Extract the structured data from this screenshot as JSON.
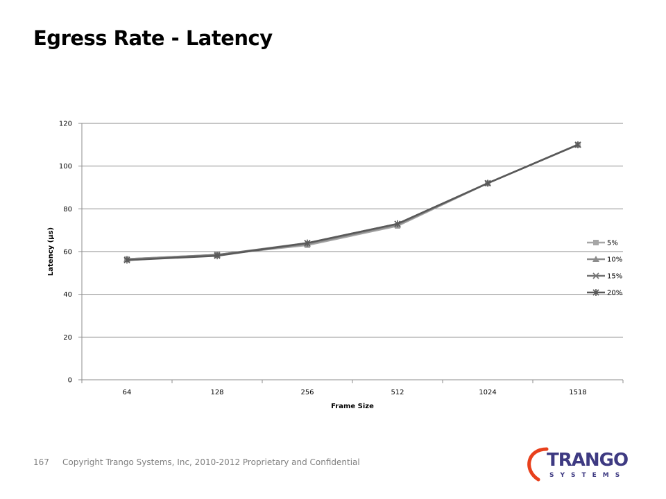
{
  "slide": {
    "title": "Egress Rate - Latency",
    "page_number": "167",
    "copyright": "Copyright Trango Systems, Inc, 2010-2012  Proprietary and Confidential"
  },
  "logo": {
    "name": "TRANGO",
    "sub": "SYSTEMS",
    "colors": {
      "text": "#3e3a82",
      "arc": "#e8401c"
    }
  },
  "chart_data": {
    "type": "line",
    "title": "",
    "xlabel": "Frame Size",
    "ylabel": "Latency (µs)",
    "categories": [
      "64",
      "128",
      "256",
      "512",
      "1024",
      "1518"
    ],
    "ylim": [
      0,
      120
    ],
    "yticks": [
      0,
      20,
      40,
      60,
      80,
      100,
      120
    ],
    "grid": true,
    "legend_position": "right",
    "series": [
      {
        "name": "5%",
        "values": [
          56.5,
          58.5,
          63,
          72,
          92,
          110
        ],
        "color": "#a6a6a6",
        "marker": "square"
      },
      {
        "name": "10%",
        "values": [
          56.5,
          58.5,
          63.5,
          72.5,
          92,
          110
        ],
        "color": "#8c8c8c",
        "marker": "triangle"
      },
      {
        "name": "15%",
        "values": [
          56,
          58.5,
          64,
          73,
          92,
          110
        ],
        "color": "#737373",
        "marker": "x"
      },
      {
        "name": "20%",
        "values": [
          56,
          58,
          64,
          73,
          92,
          110
        ],
        "color": "#595959",
        "marker": "star"
      }
    ]
  }
}
